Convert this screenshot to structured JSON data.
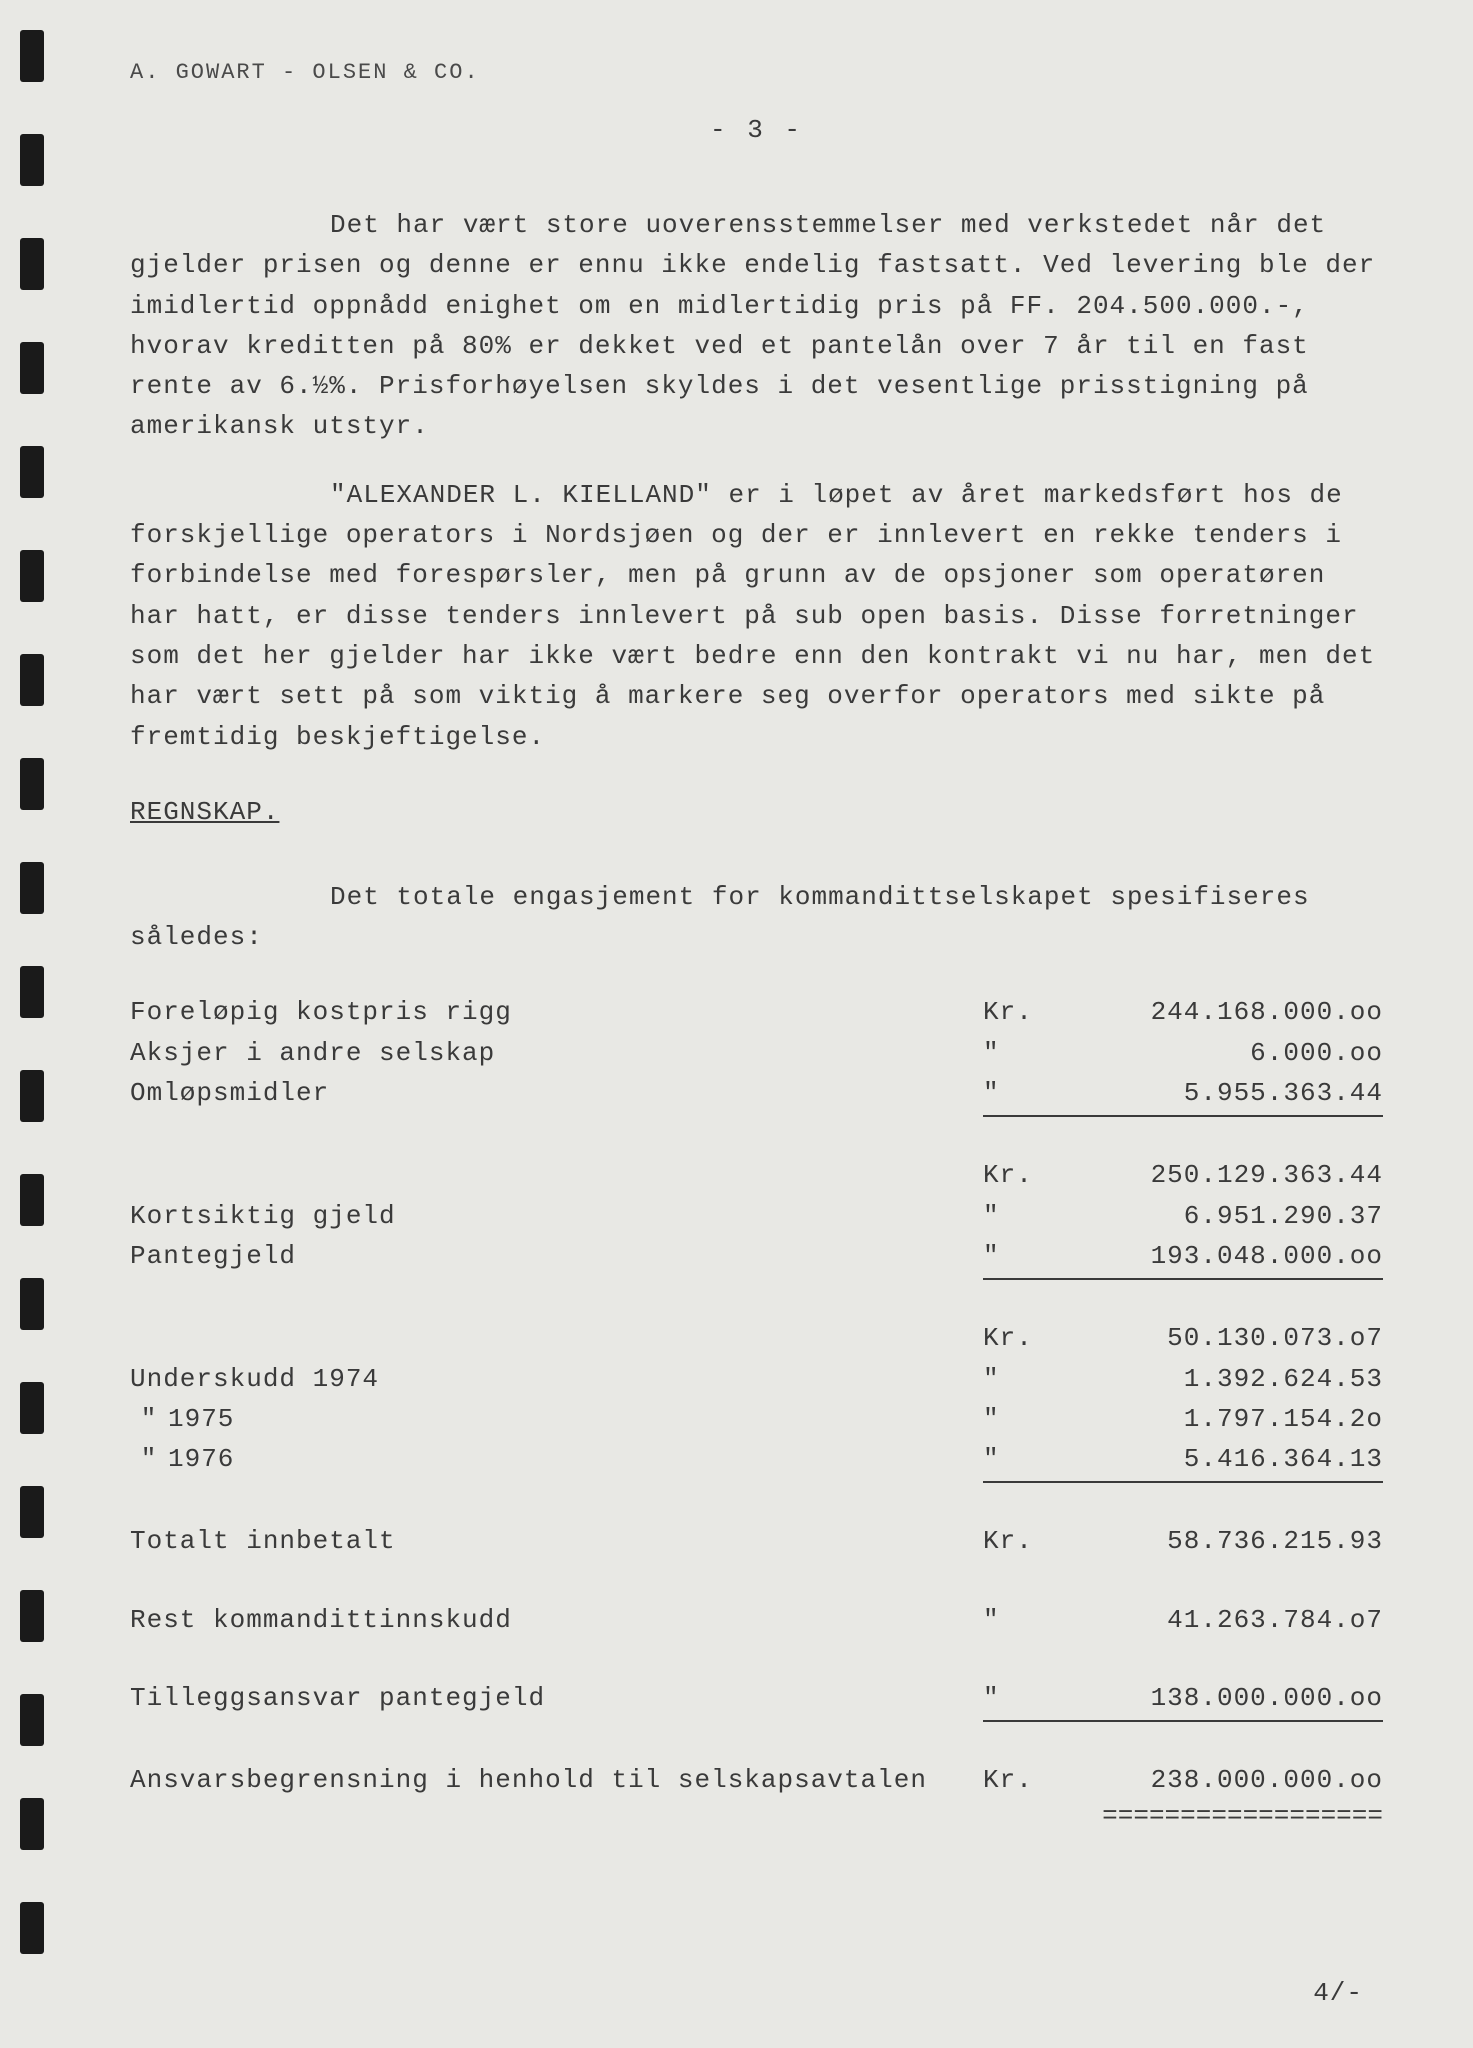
{
  "letterhead": "A. GOWART - OLSEN & CO.",
  "page_number": "- 3 -",
  "paragraphs": {
    "p1": "Det har vært store uoverensstemmelser med verkstedet når det gjelder prisen og denne er ennu ikke endelig fastsatt. Ved levering ble der imidlertid oppnådd enighet om en midlertidig pris på FF. 204.500.000.-, hvorav kreditten på 80% er dekket ved et pantelån over 7 år til en fast rente av 6.½%.  Prisforhøyelsen skyldes i det vesentlige prisstigning på amerikansk utstyr.",
    "p2": "\"ALEXANDER L. KIELLAND\" er i løpet av året markedsført hos de forskjellige operators i Nordsjøen og der er innlevert en rekke tenders i forbindelse med forespørsler, men på grunn av de opsjoner som operatøren har hatt, er disse tenders innlevert på sub open basis.  Disse forretninger som det her gjelder har ikke vært bedre enn den kontrakt vi nu har, men det har vært sett på som viktig å markere seg overfor operators med sikte på fremtidig beskjeftigelse."
  },
  "section_heading": "REGNSKAP.",
  "intro_line": "Det totale engasjement for kommandittselskapet spesifiseres således:",
  "financials": {
    "rows": [
      {
        "label": "Foreløpig kostpris rigg",
        "currency": "Kr.",
        "value": "244.168.000.oo",
        "underline": false
      },
      {
        "label": "Aksjer i andre selskap",
        "currency": "\"",
        "value": "6.000.oo",
        "underline": false
      },
      {
        "label": "Omløpsmidler",
        "currency": "\"",
        "value": "5.955.363.44",
        "underline": true
      }
    ],
    "subtotal1": {
      "label": "",
      "currency": "Kr.",
      "value": "250.129.363.44"
    },
    "liabilities": [
      {
        "label": "Kortsiktig gjeld",
        "currency": "\"",
        "value": "6.951.290.37",
        "underline": false
      },
      {
        "label": "Pantegjeld",
        "currency": "\"",
        "value": "193.048.000.oo",
        "underline": true
      }
    ],
    "subtotal2": {
      "label": "",
      "currency": "Kr.",
      "value": "50.130.073.o7"
    },
    "deficits": [
      {
        "label": "Underskudd 1974",
        "currency": "\"",
        "value": "1.392.624.53",
        "underline": false
      },
      {
        "label_prefix": "\"",
        "label_year": "1975",
        "currency": "\"",
        "value": "1.797.154.2o",
        "underline": false
      },
      {
        "label_prefix": "\"",
        "label_year": "1976",
        "currency": "\"",
        "value": "5.416.364.13",
        "underline": true
      }
    ],
    "total_paid": {
      "label": "Totalt innbetalt",
      "currency": "Kr.",
      "value": "58.736.215.93"
    },
    "rest_kommanditt": {
      "label": "Rest kommandittinnskudd",
      "currency": "\"",
      "value": "41.263.784.o7"
    },
    "tillegg": {
      "label": "Tilleggsansvar pantegjeld",
      "currency": "\"",
      "value": "138.000.000.oo"
    },
    "final": {
      "label": "Ansvarsbegrensning i henhold til selskapsavtalen",
      "currency": "Kr.",
      "value": "238.000.000.oo"
    }
  },
  "footer_ref": "4/-",
  "style": {
    "background_color": "#e8e8e4",
    "text_color": "#3a3a3a",
    "font_family": "Courier New",
    "body_fontsize": 26,
    "letterhead_fontsize": 22
  }
}
